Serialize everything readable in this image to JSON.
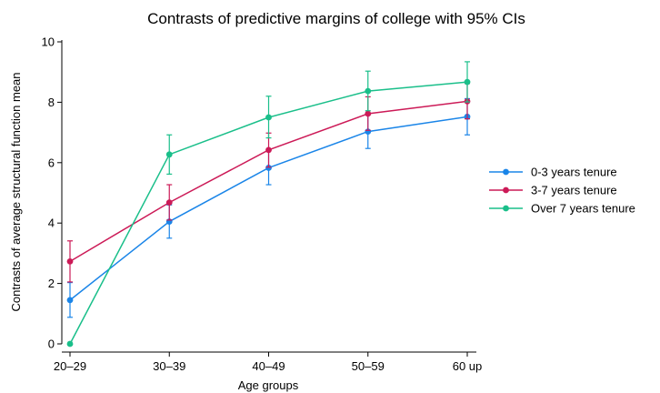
{
  "chart_data": {
    "type": "line",
    "title": "Contrasts of predictive margins of college with 95% CIs",
    "xlabel": "Age groups",
    "ylabel": "Contrasts of average structural function mean",
    "categories": [
      "20–29",
      "30–39",
      "40–49",
      "50–59",
      "60 up"
    ],
    "ylim": [
      0,
      10
    ],
    "yticks": [
      0,
      2,
      4,
      6,
      8,
      10
    ],
    "grid": false,
    "legend_position": "right",
    "error_bars": "95% CI",
    "series": [
      {
        "name": "0-3 years tenure",
        "color": "#1a85e8",
        "values": [
          1.45,
          4.05,
          5.83,
          7.03,
          7.52
        ],
        "ci_low": [
          0.88,
          3.5,
          5.27,
          6.47,
          6.92
        ],
        "ci_high": [
          2.03,
          4.6,
          6.4,
          7.6,
          8.12
        ]
      },
      {
        "name": "3-7 years tenure",
        "color": "#cc1a57",
        "values": [
          2.73,
          4.68,
          6.42,
          7.62,
          8.03
        ],
        "ci_low": [
          2.05,
          4.1,
          5.85,
          7.07,
          7.45
        ],
        "ci_high": [
          3.41,
          5.27,
          6.98,
          8.18,
          8.62
        ]
      },
      {
        "name": "Over 7 years tenure",
        "color": "#1abf8a",
        "values": [
          0.0,
          6.27,
          7.5,
          8.37,
          8.67
        ],
        "ci_low": [
          0.0,
          5.62,
          6.82,
          7.72,
          8.01
        ],
        "ci_high": [
          0.0,
          6.92,
          8.2,
          9.03,
          9.34
        ]
      }
    ]
  }
}
